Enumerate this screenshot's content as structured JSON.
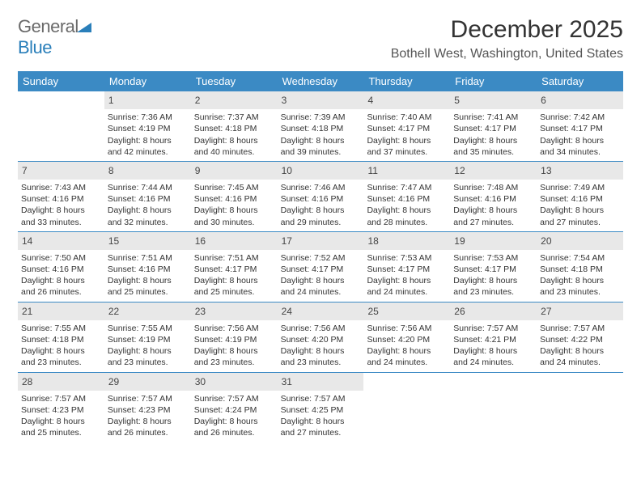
{
  "logo": {
    "general": "General",
    "blue": "Blue"
  },
  "title": "December 2025",
  "location": "Bothell West, Washington, United States",
  "day_names": [
    "Sunday",
    "Monday",
    "Tuesday",
    "Wednesday",
    "Thursday",
    "Friday",
    "Saturday"
  ],
  "colors": {
    "header_bg": "#3b8ac4",
    "header_fg": "#ffffff",
    "daynum_bg": "#e8e8e8",
    "week_divider": "#3b8ac4",
    "logo_gray": "#6a6a6a",
    "logo_blue": "#2a7fba"
  },
  "weeks": [
    [
      {
        "n": "",
        "lines": []
      },
      {
        "n": "1",
        "lines": [
          "Sunrise: 7:36 AM",
          "Sunset: 4:19 PM",
          "Daylight: 8 hours",
          "and 42 minutes."
        ]
      },
      {
        "n": "2",
        "lines": [
          "Sunrise: 7:37 AM",
          "Sunset: 4:18 PM",
          "Daylight: 8 hours",
          "and 40 minutes."
        ]
      },
      {
        "n": "3",
        "lines": [
          "Sunrise: 7:39 AM",
          "Sunset: 4:18 PM",
          "Daylight: 8 hours",
          "and 39 minutes."
        ]
      },
      {
        "n": "4",
        "lines": [
          "Sunrise: 7:40 AM",
          "Sunset: 4:17 PM",
          "Daylight: 8 hours",
          "and 37 minutes."
        ]
      },
      {
        "n": "5",
        "lines": [
          "Sunrise: 7:41 AM",
          "Sunset: 4:17 PM",
          "Daylight: 8 hours",
          "and 35 minutes."
        ]
      },
      {
        "n": "6",
        "lines": [
          "Sunrise: 7:42 AM",
          "Sunset: 4:17 PM",
          "Daylight: 8 hours",
          "and 34 minutes."
        ]
      }
    ],
    [
      {
        "n": "7",
        "lines": [
          "Sunrise: 7:43 AM",
          "Sunset: 4:16 PM",
          "Daylight: 8 hours",
          "and 33 minutes."
        ]
      },
      {
        "n": "8",
        "lines": [
          "Sunrise: 7:44 AM",
          "Sunset: 4:16 PM",
          "Daylight: 8 hours",
          "and 32 minutes."
        ]
      },
      {
        "n": "9",
        "lines": [
          "Sunrise: 7:45 AM",
          "Sunset: 4:16 PM",
          "Daylight: 8 hours",
          "and 30 minutes."
        ]
      },
      {
        "n": "10",
        "lines": [
          "Sunrise: 7:46 AM",
          "Sunset: 4:16 PM",
          "Daylight: 8 hours",
          "and 29 minutes."
        ]
      },
      {
        "n": "11",
        "lines": [
          "Sunrise: 7:47 AM",
          "Sunset: 4:16 PM",
          "Daylight: 8 hours",
          "and 28 minutes."
        ]
      },
      {
        "n": "12",
        "lines": [
          "Sunrise: 7:48 AM",
          "Sunset: 4:16 PM",
          "Daylight: 8 hours",
          "and 27 minutes."
        ]
      },
      {
        "n": "13",
        "lines": [
          "Sunrise: 7:49 AM",
          "Sunset: 4:16 PM",
          "Daylight: 8 hours",
          "and 27 minutes."
        ]
      }
    ],
    [
      {
        "n": "14",
        "lines": [
          "Sunrise: 7:50 AM",
          "Sunset: 4:16 PM",
          "Daylight: 8 hours",
          "and 26 minutes."
        ]
      },
      {
        "n": "15",
        "lines": [
          "Sunrise: 7:51 AM",
          "Sunset: 4:16 PM",
          "Daylight: 8 hours",
          "and 25 minutes."
        ]
      },
      {
        "n": "16",
        "lines": [
          "Sunrise: 7:51 AM",
          "Sunset: 4:17 PM",
          "Daylight: 8 hours",
          "and 25 minutes."
        ]
      },
      {
        "n": "17",
        "lines": [
          "Sunrise: 7:52 AM",
          "Sunset: 4:17 PM",
          "Daylight: 8 hours",
          "and 24 minutes."
        ]
      },
      {
        "n": "18",
        "lines": [
          "Sunrise: 7:53 AM",
          "Sunset: 4:17 PM",
          "Daylight: 8 hours",
          "and 24 minutes."
        ]
      },
      {
        "n": "19",
        "lines": [
          "Sunrise: 7:53 AM",
          "Sunset: 4:17 PM",
          "Daylight: 8 hours",
          "and 23 minutes."
        ]
      },
      {
        "n": "20",
        "lines": [
          "Sunrise: 7:54 AM",
          "Sunset: 4:18 PM",
          "Daylight: 8 hours",
          "and 23 minutes."
        ]
      }
    ],
    [
      {
        "n": "21",
        "lines": [
          "Sunrise: 7:55 AM",
          "Sunset: 4:18 PM",
          "Daylight: 8 hours",
          "and 23 minutes."
        ]
      },
      {
        "n": "22",
        "lines": [
          "Sunrise: 7:55 AM",
          "Sunset: 4:19 PM",
          "Daylight: 8 hours",
          "and 23 minutes."
        ]
      },
      {
        "n": "23",
        "lines": [
          "Sunrise: 7:56 AM",
          "Sunset: 4:19 PM",
          "Daylight: 8 hours",
          "and 23 minutes."
        ]
      },
      {
        "n": "24",
        "lines": [
          "Sunrise: 7:56 AM",
          "Sunset: 4:20 PM",
          "Daylight: 8 hours",
          "and 23 minutes."
        ]
      },
      {
        "n": "25",
        "lines": [
          "Sunrise: 7:56 AM",
          "Sunset: 4:20 PM",
          "Daylight: 8 hours",
          "and 24 minutes."
        ]
      },
      {
        "n": "26",
        "lines": [
          "Sunrise: 7:57 AM",
          "Sunset: 4:21 PM",
          "Daylight: 8 hours",
          "and 24 minutes."
        ]
      },
      {
        "n": "27",
        "lines": [
          "Sunrise: 7:57 AM",
          "Sunset: 4:22 PM",
          "Daylight: 8 hours",
          "and 24 minutes."
        ]
      }
    ],
    [
      {
        "n": "28",
        "lines": [
          "Sunrise: 7:57 AM",
          "Sunset: 4:23 PM",
          "Daylight: 8 hours",
          "and 25 minutes."
        ]
      },
      {
        "n": "29",
        "lines": [
          "Sunrise: 7:57 AM",
          "Sunset: 4:23 PM",
          "Daylight: 8 hours",
          "and 26 minutes."
        ]
      },
      {
        "n": "30",
        "lines": [
          "Sunrise: 7:57 AM",
          "Sunset: 4:24 PM",
          "Daylight: 8 hours",
          "and 26 minutes."
        ]
      },
      {
        "n": "31",
        "lines": [
          "Sunrise: 7:57 AM",
          "Sunset: 4:25 PM",
          "Daylight: 8 hours",
          "and 27 minutes."
        ]
      },
      {
        "n": "",
        "lines": []
      },
      {
        "n": "",
        "lines": []
      },
      {
        "n": "",
        "lines": []
      }
    ]
  ]
}
